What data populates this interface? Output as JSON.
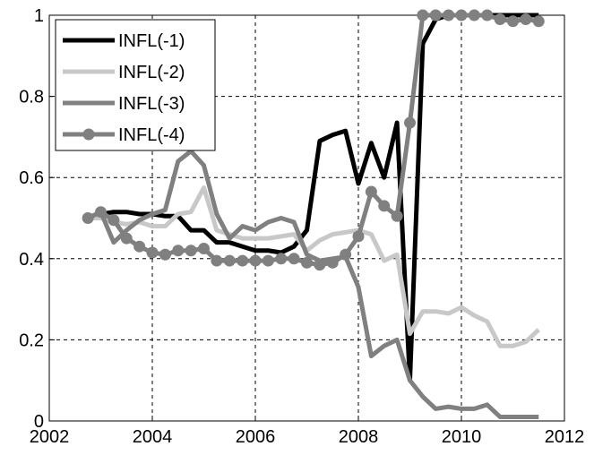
{
  "chart_data": {
    "type": "line",
    "x": [
      2002.75,
      2003,
      2003.25,
      2003.5,
      2003.75,
      2004,
      2004.25,
      2004.5,
      2004.75,
      2005,
      2005.25,
      2005.5,
      2005.75,
      2006,
      2006.25,
      2006.5,
      2006.75,
      2007,
      2007.25,
      2007.5,
      2007.75,
      2008,
      2008.25,
      2008.5,
      2008.75,
      2009,
      2009.25,
      2009.5,
      2009.75,
      2010,
      2010.25,
      2010.5,
      2010.75,
      2011,
      2011.25,
      2011.5
    ],
    "series": [
      {
        "name": "INFL(-1)",
        "color": "#000000",
        "marker": false,
        "values": [
          0.5,
          0.51,
          0.515,
          0.515,
          0.51,
          0.51,
          0.505,
          0.505,
          0.47,
          0.47,
          0.44,
          0.44,
          0.43,
          0.42,
          0.42,
          0.415,
          0.43,
          0.47,
          0.69,
          0.705,
          0.715,
          0.585,
          0.685,
          0.6,
          0.735,
          0.1,
          0.93,
          0.99,
          1.0,
          1.0,
          1.0,
          1.0,
          1.0,
          1.0,
          1.0,
          1.0
        ]
      },
      {
        "name": "INFL(-2)",
        "color": "#c8c8c8",
        "marker": false,
        "values": [
          0.5,
          0.5,
          0.49,
          0.485,
          0.49,
          0.48,
          0.48,
          0.51,
          0.515,
          0.575,
          0.47,
          0.46,
          0.45,
          0.45,
          0.45,
          0.455,
          0.46,
          0.42,
          0.445,
          0.46,
          0.465,
          0.47,
          0.46,
          0.395,
          0.41,
          0.215,
          0.27,
          0.27,
          0.265,
          0.28,
          0.26,
          0.245,
          0.185,
          0.185,
          0.195,
          0.225
        ]
      },
      {
        "name": "INFL(-3)",
        "color": "#808080",
        "marker": false,
        "values": [
          0.5,
          0.515,
          0.44,
          0.47,
          0.495,
          0.51,
          0.52,
          0.64,
          0.665,
          0.63,
          0.51,
          0.45,
          0.48,
          0.47,
          0.49,
          0.5,
          0.49,
          0.41,
          0.395,
          0.4,
          0.405,
          0.33,
          0.16,
          0.185,
          0.2,
          0.1,
          0.06,
          0.03,
          0.035,
          0.03,
          0.03,
          0.04,
          0.01,
          0.01,
          0.01,
          0.01
        ]
      },
      {
        "name": "INFL(-4)",
        "color": "#808080",
        "marker": true,
        "values": [
          0.5,
          0.515,
          0.495,
          0.45,
          0.43,
          0.415,
          0.41,
          0.42,
          0.42,
          0.425,
          0.395,
          0.395,
          0.395,
          0.395,
          0.395,
          0.4,
          0.4,
          0.39,
          0.385,
          0.39,
          0.41,
          0.455,
          0.565,
          0.53,
          0.505,
          0.735,
          1.0,
          1.0,
          1.0,
          1.0,
          1.0,
          1.0,
          0.99,
          0.985,
          0.99,
          0.985
        ]
      }
    ],
    "xlim": [
      2002,
      2012
    ],
    "xticks": [
      2002,
      2004,
      2006,
      2008,
      2010,
      2012
    ],
    "ylim": [
      0,
      1
    ],
    "yticks": [
      0,
      0.2,
      0.4,
      0.6,
      0.8,
      1
    ],
    "grid": true,
    "legend": "upper-left"
  }
}
